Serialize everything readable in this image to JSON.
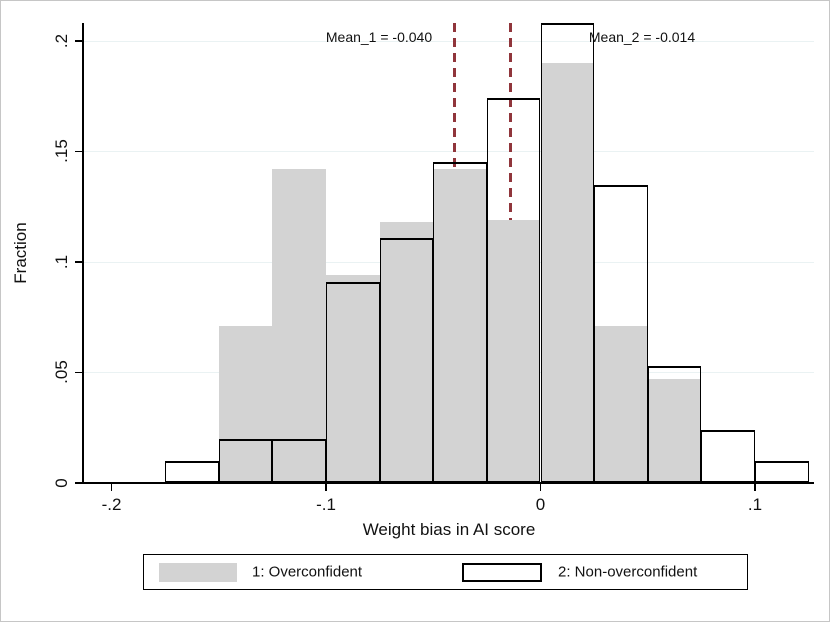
{
  "chart_data": {
    "type": "bar",
    "subtype": "overlaid-histogram",
    "title": "",
    "xlabel": "Weight bias in AI score",
    "ylabel": "Fraction",
    "bins": {
      "start": -0.175,
      "width": 0.025,
      "count": 12
    },
    "series": [
      {
        "name": "1: Overconfident",
        "style": "gray-fill",
        "values": [
          0,
          0.071,
          0.142,
          0.094,
          0.118,
          0.142,
          0.119,
          0.19,
          0.071,
          0.047,
          0,
          0
        ]
      },
      {
        "name": "2: Non-overconfident",
        "style": "black-outline",
        "values": [
          0.01,
          0.02,
          0.02,
          0.091,
          0.111,
          0.145,
          0.174,
          0.208,
          0.135,
          0.053,
          0.024,
          0.01
        ]
      }
    ],
    "mean_lines": [
      {
        "x": -0.04,
        "label": "Mean_1 = -0.040"
      },
      {
        "x": -0.014,
        "label": "Mean_2 = -0.014"
      }
    ],
    "x_ticks": [
      {
        "value": -0.2,
        "label": "-.2"
      },
      {
        "value": -0.1,
        "label": "-.1"
      },
      {
        "value": 0,
        "label": "0"
      },
      {
        "value": 0.1,
        "label": ".1"
      }
    ],
    "y_ticks": [
      {
        "value": 0,
        "label": "0"
      },
      {
        "value": 0.05,
        "label": ".05"
      },
      {
        "value": 0.1,
        "label": ".1"
      },
      {
        "value": 0.15,
        "label": ".15"
      },
      {
        "value": 0.2,
        "label": ".2"
      }
    ],
    "xlim": [
      -0.2,
      0.125
    ],
    "ylim": [
      0,
      0.208
    ],
    "grid": true,
    "legend": {
      "position": "bottom"
    }
  },
  "colors": {
    "bar_fill": "#d3d3d3",
    "bar_outline": "#000000",
    "mean_line": "#90353b",
    "gridline": "#eaf2f3",
    "axis": "#000000",
    "text": "#111111",
    "background": "#ffffff",
    "figure_border": "#c6c6c6"
  }
}
